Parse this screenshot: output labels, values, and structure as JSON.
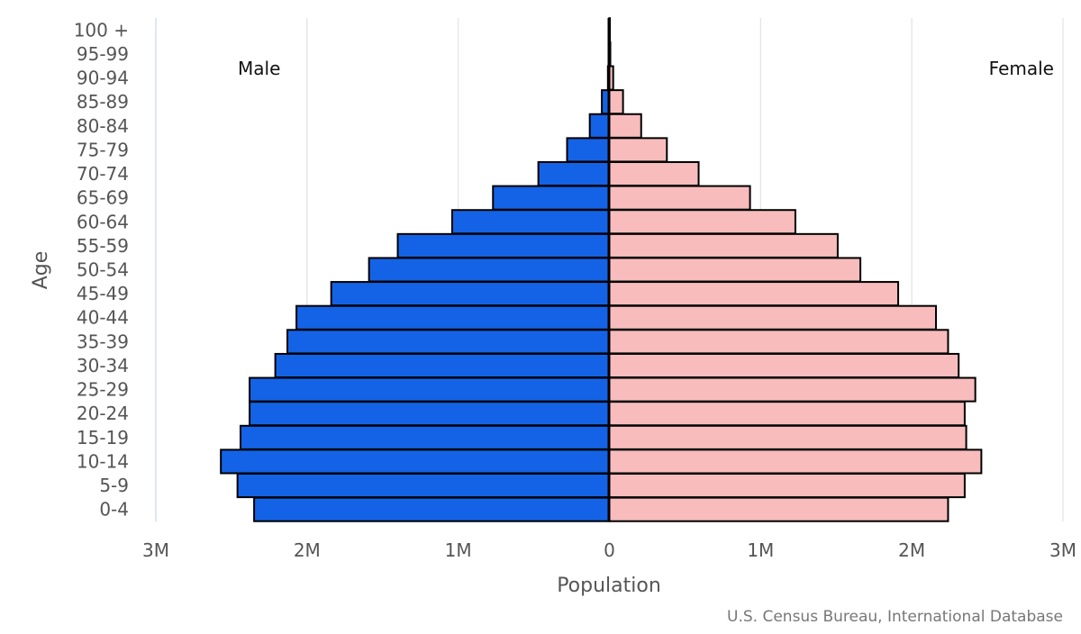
{
  "chart_data": {
    "type": "bar",
    "orientation": "horizontal-population-pyramid",
    "xlabel": "Population",
    "ylabel": "Age",
    "xlim": [
      -3000000,
      3000000
    ],
    "x_ticks": [
      {
        "value": -3000000,
        "label": "3M"
      },
      {
        "value": -2000000,
        "label": "2M"
      },
      {
        "value": -1000000,
        "label": "1M"
      },
      {
        "value": 0,
        "label": "0"
      },
      {
        "value": 1000000,
        "label": "1M"
      },
      {
        "value": 2000000,
        "label": "2M"
      },
      {
        "value": 3000000,
        "label": "3M"
      }
    ],
    "grid": true,
    "categories": [
      "0-4",
      "5-9",
      "10-14",
      "15-19",
      "20-24",
      "25-29",
      "30-34",
      "35-39",
      "40-44",
      "45-49",
      "50-54",
      "55-59",
      "60-64",
      "65-69",
      "70-74",
      "75-79",
      "80-84",
      "85-89",
      "90-94",
      "95-99",
      "100 +"
    ],
    "series": [
      {
        "name": "Male",
        "color": "#1463e6",
        "values": [
          2350000,
          2460000,
          2570000,
          2440000,
          2380000,
          2380000,
          2210000,
          2130000,
          2070000,
          1840000,
          1590000,
          1400000,
          1040000,
          770000,
          470000,
          280000,
          130000,
          50000,
          10000,
          3000,
          1000
        ]
      },
      {
        "name": "Female",
        "color": "#f9bcbc",
        "values": [
          2240000,
          2350000,
          2460000,
          2360000,
          2350000,
          2420000,
          2310000,
          2240000,
          2160000,
          1910000,
          1660000,
          1510000,
          1230000,
          930000,
          590000,
          380000,
          210000,
          90000,
          25000,
          6000,
          1000
        ]
      }
    ],
    "side_labels": {
      "left": "Male",
      "right": "Female"
    },
    "source": "U.S. Census Bureau, International Database"
  }
}
